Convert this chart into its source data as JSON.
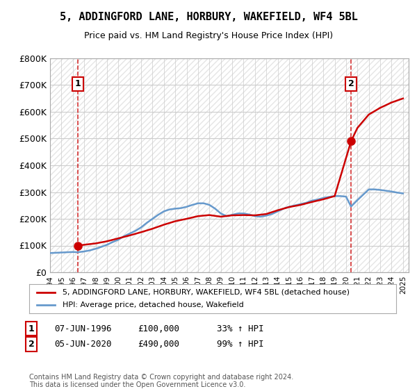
{
  "title": "5, ADDINGFORD LANE, HORBURY, WAKEFIELD, WF4 5BL",
  "subtitle": "Price paid vs. HM Land Registry's House Price Index (HPI)",
  "ylabel": "",
  "xlabel": "",
  "ylim": [
    0,
    800000
  ],
  "yticks": [
    0,
    100000,
    200000,
    300000,
    400000,
    500000,
    600000,
    700000,
    800000
  ],
  "ytick_labels": [
    "£0",
    "£100K",
    "£200K",
    "£300K",
    "£400K",
    "£500K",
    "£600K",
    "£700K",
    "£800K"
  ],
  "hpi_color": "#6699cc",
  "price_color": "#cc0000",
  "transaction1_year": 1996.44,
  "transaction1_value": 100000,
  "transaction2_year": 2020.44,
  "transaction2_value": 490000,
  "legend_label1": "5, ADDINGFORD LANE, HORBURY, WAKEFIELD, WF4 5BL (detached house)",
  "legend_label2": "HPI: Average price, detached house, Wakefield",
  "table_row1": [
    "1",
    "07-JUN-1996",
    "£100,000",
    "33% ↑ HPI"
  ],
  "table_row2": [
    "2",
    "05-JUN-2020",
    "£490,000",
    "99% ↑ HPI"
  ],
  "footer": "Contains HM Land Registry data © Crown copyright and database right 2024.\nThis data is licensed under the Open Government Licence v3.0.",
  "bg_hatch_color": "#e8e8e8",
  "grid_color": "#cccccc",
  "hpi_line_data_x": [
    1994,
    1994.5,
    1995,
    1995.5,
    1996,
    1996.44,
    1997,
    1997.5,
    1998,
    1998.5,
    1999,
    1999.5,
    2000,
    2000.5,
    2001,
    2001.5,
    2002,
    2002.5,
    2003,
    2003.5,
    2004,
    2004.5,
    2005,
    2005.5,
    2006,
    2006.5,
    2007,
    2007.5,
    2008,
    2008.5,
    2009,
    2009.5,
    2010,
    2010.5,
    2011,
    2011.5,
    2012,
    2012.5,
    2013,
    2013.5,
    2014,
    2014.5,
    2015,
    2015.5,
    2016,
    2016.5,
    2017,
    2017.5,
    2018,
    2018.5,
    2019,
    2019.5,
    2020,
    2020.44,
    2021,
    2021.5,
    2022,
    2022.5,
    2023,
    2023.5,
    2024,
    2024.5,
    2025
  ],
  "hpi_line_data_y": [
    72000,
    73000,
    74000,
    75000,
    76000,
    75000,
    78000,
    82000,
    88000,
    95000,
    103000,
    113000,
    122000,
    135000,
    145000,
    155000,
    168000,
    185000,
    200000,
    215000,
    228000,
    235000,
    238000,
    240000,
    245000,
    252000,
    258000,
    258000,
    252000,
    238000,
    220000,
    210000,
    215000,
    220000,
    220000,
    216000,
    210000,
    208000,
    212000,
    218000,
    228000,
    238000,
    245000,
    250000,
    255000,
    260000,
    268000,
    272000,
    278000,
    282000,
    285000,
    285000,
    283000,
    246000,
    270000,
    290000,
    310000,
    310000,
    308000,
    305000,
    302000,
    298000,
    295000
  ],
  "price_line_data_x": [
    1996.44,
    1997,
    1998,
    1999,
    2000,
    2001,
    2002,
    2003,
    2004,
    2005,
    2006,
    2007,
    2008,
    2009,
    2010,
    2011,
    2012,
    2013,
    2014,
    2015,
    2016,
    2017,
    2018,
    2019,
    2020.44,
    2021,
    2022,
    2023,
    2024,
    2025
  ],
  "price_line_data_y": [
    100000,
    103000,
    108000,
    116000,
    127000,
    138000,
    150000,
    163000,
    178000,
    191000,
    200000,
    210000,
    214000,
    208000,
    213000,
    214000,
    213000,
    218000,
    232000,
    244000,
    252000,
    263000,
    273000,
    285000,
    490000,
    540000,
    590000,
    615000,
    635000,
    650000
  ],
  "xmin": 1994,
  "xmax": 2025.5
}
